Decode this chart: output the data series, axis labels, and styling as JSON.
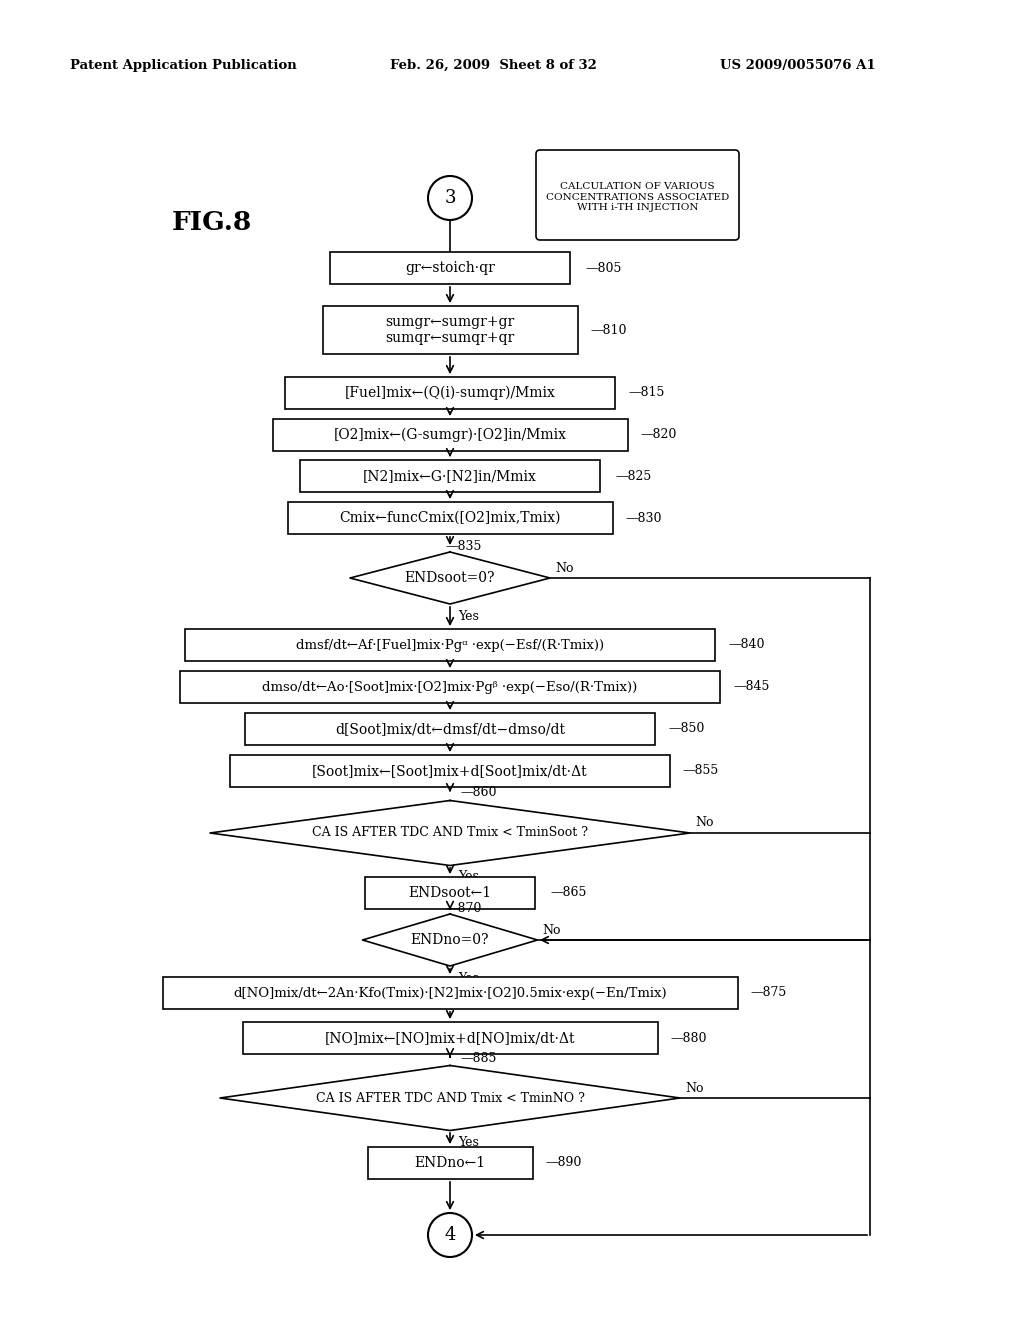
{
  "bg_color": "#ffffff",
  "header_left": "Patent Application Publication",
  "header_mid": "Feb. 26, 2009  Sheet 8 of 32",
  "header_right": "US 2009/0055076 A1",
  "fig_label": "FIG.8",
  "title_circle_num": "3",
  "title_text_line1": "CALCULATION OF VARIOUS",
  "title_text_line2": "CONCENTRATIONS ASSOCIATED",
  "title_text_line3": "WITH i-TH INJECTION",
  "bottom_circle_num": "4",
  "step_805": "gr←stoich·qr",
  "step_810": "sumgr←sumgr+gr\nsumqr←sumqr+qr",
  "step_815": "[Fuel]mix←(Q(i)-sumqr)/Mmix",
  "step_820": "[O2]mix←(G-sumgr)·[O2]in/Mmix",
  "step_825": "[N2]mix←G·[N2]in/Mmix",
  "step_830": "Cmix←funcCmix([O2]mix,Tmix)",
  "step_835": "ENDsoot=0?",
  "step_840": "dmsf/dt←Af·[Fuel]mix·Pgᵅ ·exp(−Esf/(R·Tmix))",
  "step_845": "dmso/dt←Ao·[Soot]mix·[O2]mix·Pgᵝ ·exp(−Eso/(R·Tmix))",
  "step_850": "d[Soot]mix/dt←dmsf/dt−dmso/dt",
  "step_855": "[Soot]mix←[Soot]mix+d[Soot]mix/dt·Δt",
  "step_860": "CA IS AFTER TDC AND Tmix < TminSoot ?",
  "step_865": "ENDsoot←1",
  "step_870": "ENDno=0?",
  "step_875": "d[NO]mix/dt←2An·Kfo(Tmix)·[N2]mix·[O2]0.5mix·exp(−En/Tmix)",
  "step_880": "[NO]mix←[NO]mix+d[NO]mix/dt·Δt",
  "step_885": "CA IS AFTER TDC AND Tmix < TminNO ?",
  "step_890": "ENDno←1"
}
